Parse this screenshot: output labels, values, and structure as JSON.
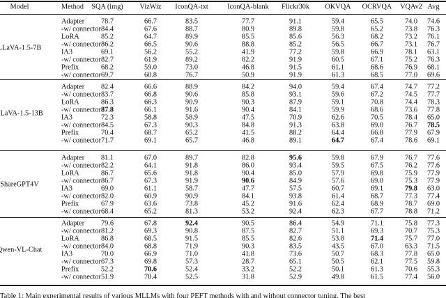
{
  "table": {
    "headers": [
      "Model",
      "Method",
      "SQA (img)",
      "VizWiz",
      "IconQA-txt",
      "IconQA-blank",
      "Flickr30k",
      "OKVQA",
      "OCRVQA",
      "VQAv2",
      "Avg"
    ],
    "groups": [
      {
        "model": "LLaVA-1.5-7B",
        "rows": [
          {
            "method": "Adapter",
            "values": [
              "78.7",
              "66.7",
              "83.5",
              "77.7",
              "91.1",
              "59.4",
              "65.5",
              "74.0",
              "74.6"
            ],
            "bold": []
          },
          {
            "method": "-w/ connector",
            "values": [
              "84.4",
              "67.6",
              "88.7",
              "80.9",
              "89.8",
              "59.8",
              "65.2",
              "73.8",
              "76.3"
            ],
            "bold": []
          },
          {
            "method": "LoRA",
            "values": [
              "85.2",
              "64.7",
              "89.9",
              "85.5",
              "85.6",
              "56.3",
              "68.2",
              "73.2",
              "76.1"
            ],
            "bold": []
          },
          {
            "method": "-w/ connector",
            "values": [
              "86.2",
              "66.5",
              "90.6",
              "88.8",
              "85.2",
              "56.5",
              "66.7",
              "73.1",
              "76.7"
            ],
            "bold": []
          },
          {
            "method": "IA3",
            "values": [
              "69.1",
              "56.2",
              "55.2",
              "41.9",
              "77.2",
              "59.8",
              "66.9",
              "78.1",
              "63.1"
            ],
            "bold": []
          },
          {
            "method": "-w/ connector",
            "values": [
              "82.7",
              "61.9",
              "89.2",
              "82.2",
              "91.9",
              "60.5",
              "67.1",
              "75.2",
              "76.3"
            ],
            "bold": []
          },
          {
            "method": "Prefix",
            "values": [
              "68.2",
              "59.0",
              "73.0",
              "46.8",
              "91.5",
              "61.1",
              "68.6",
              "76.9",
              "68.1"
            ],
            "bold": []
          },
          {
            "method": "-w/ connector",
            "values": [
              "69.7",
              "60.8",
              "76.7",
              "50.9",
              "91.9",
              "61.3",
              "68.5",
              "77.0",
              "69.6"
            ],
            "bold": []
          }
        ]
      },
      {
        "model": "LLaVA-1.5-13B",
        "rows": [
          {
            "method": "Adapter",
            "values": [
              "82.4",
              "66.6",
              "88.9",
              "84.2",
              "94.0",
              "59.4",
              "67.4",
              "74.7",
              "77.2"
            ],
            "bold": []
          },
          {
            "method": "-w/ connector",
            "values": [
              "83.7",
              "66.8",
              "90.6",
              "85.8",
              "93.1",
              "59.6",
              "67.2",
              "74.5",
              "77.7"
            ],
            "bold": []
          },
          {
            "method": "LoRA",
            "values": [
              "86.3",
              "66.3",
              "90.9",
              "90.3",
              "87.9",
              "59.1",
              "70.8",
              "74.4",
              "78.3"
            ],
            "bold": []
          },
          {
            "method": "-w/ connector",
            "values": [
              "87.8",
              "66.1",
              "91.6",
              "90.4",
              "84.1",
              "59.9",
              "68.6",
              "73.6",
              "77.8"
            ],
            "bold": [
              0
            ]
          },
          {
            "method": "IA3",
            "values": [
              "72.3",
              "58.8",
              "58.9",
              "47.5",
              "70.9",
              "62.6",
              "70.5",
              "78.4",
              "65.0"
            ],
            "bold": []
          },
          {
            "method": "-w/ connector",
            "values": [
              "84.5",
              "67.3",
              "90.3",
              "84.8",
              "91.3",
              "63.8",
              "69.0",
              "76.7",
              "78.5"
            ],
            "bold": [
              8
            ]
          },
          {
            "method": "Prefix",
            "values": [
              "70.4",
              "68.7",
              "65.2",
              "41.5",
              "88.2",
              "64.4",
              "66.8",
              "77.9",
              "67.9"
            ],
            "bold": []
          },
          {
            "method": "-w/ connector",
            "values": [
              "71.7",
              "69.1",
              "65.7",
              "46.8",
              "89.1",
              "64.7",
              "67.4",
              "78.6",
              "69.1"
            ],
            "bold": [
              5
            ]
          }
        ]
      },
      {
        "model": "ShareGPT4V",
        "rows": [
          {
            "method": "Adapter",
            "values": [
              "81.1",
              "67.0",
              "89.7",
              "82.8",
              "95.6",
              "59.8",
              "67.9",
              "76.7",
              "77.6"
            ],
            "bold": [
              4
            ]
          },
          {
            "method": "-w/ connector",
            "values": [
              "82.2",
              "64.1",
              "91.8",
              "86.0",
              "93.4",
              "59.5",
              "67.5",
              "76.2",
              "77.6"
            ],
            "bold": []
          },
          {
            "method": "LoRA",
            "values": [
              "86.7",
              "65.6",
              "91.8",
              "90.4",
              "85.0",
              "57.9",
              "69.8",
              "75.9",
              "77.9"
            ],
            "bold": []
          },
          {
            "method": "-w/ connector",
            "values": [
              "86.7",
              "67.3",
              "91.9",
              "90.6",
              "84.9",
              "57.6",
              "69.0",
              "75.3",
              "77.9"
            ],
            "bold": [
              3
            ]
          },
          {
            "method": "IA3",
            "values": [
              "69.0",
              "61.1",
              "58.7",
              "47.7",
              "57.5",
              "60.7",
              "69.1",
              "79.8",
              "63.0"
            ],
            "bold": [
              7
            ]
          },
          {
            "method": "-w/ connector",
            "values": [
              "82.0",
              "60.9",
              "90.9",
              "84.1",
              "93.8",
              "61.4",
              "68.7",
              "77.3",
              "77.4"
            ],
            "bold": []
          },
          {
            "method": "Prefix",
            "values": [
              "67.9",
              "63.6",
              "73.8",
              "45.2",
              "91.6",
              "62.4",
              "68.9",
              "78.7",
              "69.0"
            ],
            "bold": []
          },
          {
            "method": "-w/ connector",
            "values": [
              "68.4",
              "65.2",
              "81.3",
              "53.2",
              "92.4",
              "62.3",
              "67.7",
              "78.8",
              "71.2"
            ],
            "bold": []
          }
        ]
      },
      {
        "model": "Qwen-VL-Chat",
        "rows": [
          {
            "method": "Adapter",
            "values": [
              "79.6",
              "67.8",
              "92.4",
              "90.5",
              "86.4",
              "54.9",
              "71.1",
              "75.8",
              "77.3"
            ],
            "bold": [
              2
            ]
          },
          {
            "method": "-w/ connector",
            "values": [
              "81.2",
              "69.3",
              "90.8",
              "87.5",
              "82.7",
              "51.1",
              "69.3",
              "70.7",
              "75.3"
            ],
            "bold": []
          },
          {
            "method": "LoRA",
            "values": [
              "86.8",
              "68.5",
              "91.5",
              "85.5",
              "82.6",
              "53.8",
              "71.4",
              "75.7",
              "77.0"
            ],
            "bold": [
              6
            ]
          },
          {
            "method": "-w/ connector",
            "values": [
              "84.0",
              "68.8",
              "71.9",
              "90.3",
              "83.5",
              "43.5",
              "67.0",
              "63.3",
              "71.5"
            ],
            "bold": []
          },
          {
            "method": "IA3",
            "values": [
              "70.0",
              "66.9",
              "71.0",
              "41.8",
              "73.6",
              "50.7",
              "68.3",
              "77.8",
              "65.0"
            ],
            "bold": []
          },
          {
            "method": "-w/ connector",
            "values": [
              "67.3",
              "69.8",
              "57.3",
              "28.7",
              "65.1",
              "50.5",
              "62.1",
              "77.5",
              "59.8"
            ],
            "bold": []
          },
          {
            "method": "Prefix",
            "values": [
              "52.2",
              "70.6",
              "52.4",
              "33.2",
              "52.2",
              "50.1",
              "61.3",
              "70.6",
              "55.3"
            ],
            "bold": [
              1
            ]
          },
          {
            "method": "-w/ connector",
            "values": [
              "51.9",
              "70.4",
              "52.5",
              "31.8",
              "52.9",
              "49.8",
              "61.5",
              "77.4",
              "56.0"
            ],
            "bold": []
          }
        ]
      }
    ]
  },
  "caption": "Table 1: Main experimental results of various MLLMs with four PEFT methods with and without connector tuning. The best"
}
